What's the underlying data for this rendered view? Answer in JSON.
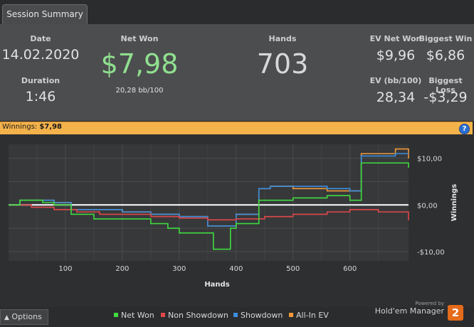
{
  "tab": {
    "label": "Session Summary"
  },
  "summary": {
    "date_label": "Date",
    "date_value": "14.02.2020",
    "duration_label": "Duration",
    "duration_value": "1:46",
    "net_won_label": "Net Won",
    "net_won_value": "$7,98",
    "net_won_sub": "20,28 bb/100",
    "hands_label": "Hands",
    "hands_value": "703",
    "ev_net_won_label": "EV Net Won",
    "ev_net_won_value": "$9,96",
    "biggest_win_label": "Biggest Win",
    "biggest_win_value": "$6,86",
    "ev_bb100_label": "EV (bb/100)",
    "ev_bb100_value": "28,34",
    "biggest_loss_label": "Biggest Loss",
    "biggest_loss_value": "-$3,29"
  },
  "winnings_bar": {
    "label": "Winnings:",
    "value": "$7,98",
    "help": "?"
  },
  "colors": {
    "net_won": "#3fdc3f",
    "non_showdown": "#e0484a",
    "showdown": "#3d8fe0",
    "all_in_ev": "#f0993a",
    "accent_orange": "#f4b24b",
    "net_won_text": "#8fe08f"
  },
  "chart_data": {
    "type": "line",
    "xlabel": "Hands",
    "ylabel": "Winnings",
    "xlim": [
      0,
      703
    ],
    "ylim": [
      -12,
      13
    ],
    "x_ticks": [
      100,
      200,
      300,
      400,
      500,
      600
    ],
    "x_tick_labels": [
      "100",
      "200",
      "300",
      "400",
      "500",
      "600"
    ],
    "y_ticks": [
      10,
      0,
      -10
    ],
    "y_tick_labels": [
      "$10,00",
      "$0,00",
      "-$10,00"
    ],
    "grid": true,
    "zero_line": true,
    "series": [
      {
        "name": "Net Won",
        "color": "#3fdc3f",
        "x": [
          0,
          20,
          30,
          60,
          80,
          110,
          150,
          200,
          250,
          280,
          300,
          350,
          360,
          390,
          400,
          440,
          460,
          500,
          560,
          600,
          620,
          660,
          703
        ],
        "y": [
          0,
          1,
          1,
          0.5,
          0,
          -2,
          -3,
          -3,
          -4,
          -5,
          -6,
          -6,
          -9.5,
          -5,
          -4,
          1,
          1,
          1.5,
          2,
          1,
          9,
          9,
          7.98
        ]
      },
      {
        "name": "Non Showdown",
        "color": "#e0484a",
        "x": [
          0,
          40,
          80,
          120,
          160,
          200,
          250,
          300,
          350,
          400,
          450,
          500,
          560,
          600,
          650,
          703
        ],
        "y": [
          0,
          -0.5,
          -1,
          -1.5,
          -2,
          -2,
          -2.5,
          -2.8,
          -3.2,
          -3,
          -2.5,
          -2,
          -1.5,
          -1,
          -1.5,
          -3.29
        ]
      },
      {
        "name": "Showdown",
        "color": "#3d8fe0",
        "x": [
          0,
          20,
          60,
          80,
          110,
          150,
          200,
          250,
          300,
          350,
          380,
          400,
          440,
          460,
          500,
          560,
          600,
          620,
          680,
          703
        ],
        "y": [
          0,
          1,
          1,
          0.5,
          -1,
          -1,
          -1.5,
          -2,
          -2.5,
          -4.5,
          -4.5,
          -2,
          3.5,
          4,
          4,
          3.5,
          3,
          10.5,
          11,
          11
        ]
      },
      {
        "name": "All-In EV",
        "color": "#f0993a",
        "x": [
          0,
          20,
          60,
          80,
          110,
          150,
          200,
          250,
          300,
          350,
          380,
          400,
          440,
          460,
          500,
          560,
          600,
          620,
          680,
          703
        ],
        "y": [
          0,
          1,
          1,
          0.5,
          -1,
          -1,
          -1.5,
          -2,
          -2.5,
          -4.5,
          -4.5,
          -2,
          3.5,
          4,
          3.5,
          3,
          3,
          11,
          12,
          9.96
        ]
      }
    ]
  },
  "footer": {
    "options_label": "Options",
    "legend": [
      "Net Won",
      "Non Showdown",
      "Showdown",
      "All-In EV"
    ],
    "powered_by": "Powered by",
    "brand": "Hold'em Manager",
    "logo_num": "2"
  }
}
